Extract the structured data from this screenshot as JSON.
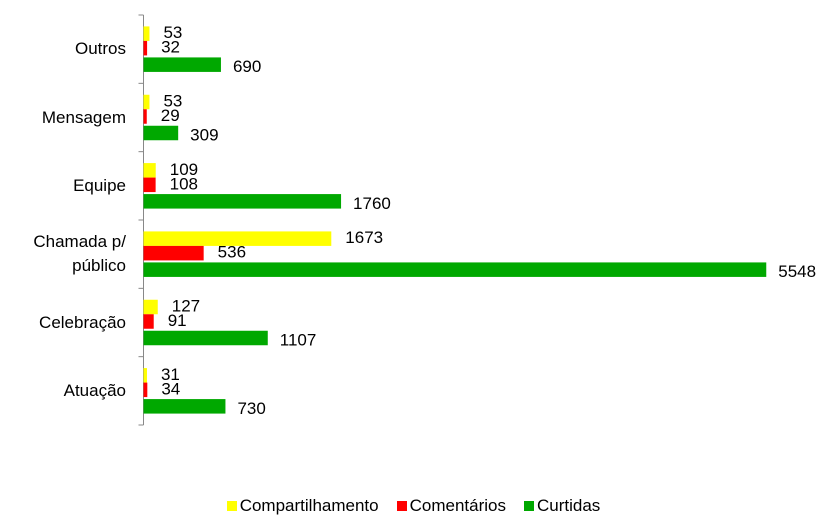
{
  "chart_data": {
    "type": "hbar",
    "categories": [
      "Outros",
      "Mensagem",
      "Equipe",
      "Chamada p/ público",
      "Celebração",
      "Atuação"
    ],
    "series": [
      {
        "name": "Compartilhamento",
        "color": "#ffff00",
        "values": [
          53,
          53,
          109,
          1673,
          127,
          31
        ]
      },
      {
        "name": "Comentários",
        "color": "#ff0000",
        "values": [
          32,
          29,
          108,
          536,
          91,
          34
        ]
      },
      {
        "name": "Curtidas",
        "color": "#00a800",
        "values": [
          690,
          309,
          1760,
          5548,
          1107,
          730
        ]
      }
    ],
    "xlim": [
      0,
      6000
    ],
    "legend": "bottom"
  }
}
